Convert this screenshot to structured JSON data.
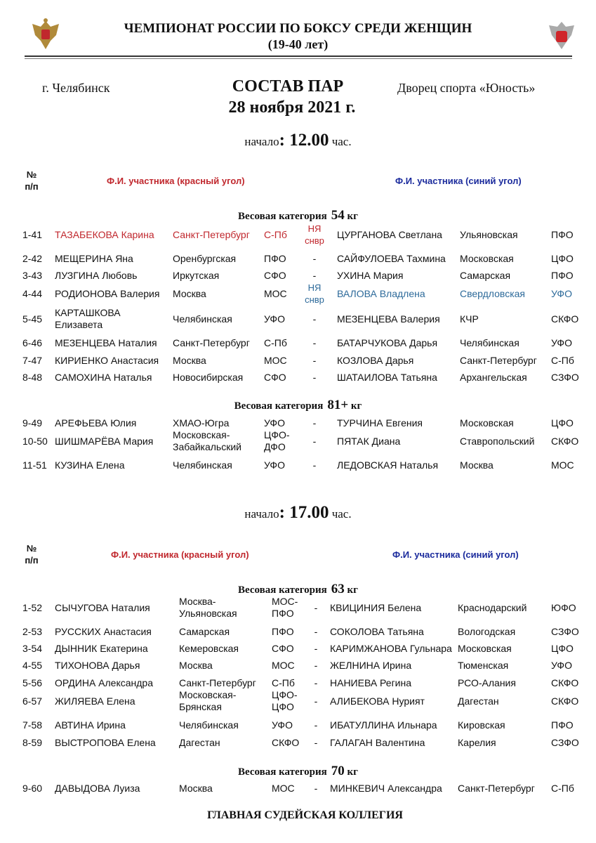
{
  "header": {
    "title": "ЧЕМПИОНАТ РОССИИ ПО БОКСУ СРЕДИ ЖЕНЩИН",
    "subtitle": "(19-40 лет)",
    "city": "г. Челябинск",
    "doc_title": "СОСТАВ ПАР",
    "date": "28 ноября 2021 г.",
    "venue": "Дворец спорта «Юность»"
  },
  "colors": {
    "red": "#c0272d",
    "blue": "#1a2a9c",
    "teal": "#2d6a9a"
  },
  "sessions": [
    {
      "start_label": "начало",
      "start_time": "12.00",
      "start_unit": "час.",
      "num_header": [
        "№",
        "п/п"
      ],
      "red_header": "Ф.И. участника (красный угол)",
      "blue_header": "Ф.И. участника (синий угол)",
      "categories": [
        {
          "label": "Весовая категория",
          "weight": "54",
          "unit": "кг",
          "rows": [
            [
              "1-41",
              "ТАЗАБЕКОВА Карина",
              "Санкт-Петербург",
              "С-Пб",
              "НЯ снвр",
              "ЦУРГАНОВА Светлана",
              "Ульяновская",
              "ПФО",
              "red-win"
            ],
            [
              "2-42",
              "МЕЩЕРИНА Яна",
              "Оренбургская",
              "ПФО",
              "-",
              "САЙФУЛОЕВА Тахмина",
              "Московская",
              "ЦФО",
              ""
            ],
            [
              "3-43",
              "ЛУЗГИНА Любовь",
              "Иркутская",
              "СФО",
              "-",
              "УХИНА Мария",
              "Самарская",
              "ПФО",
              ""
            ],
            [
              "4-44",
              "РОДИОНОВА Валерия",
              "Москва",
              "МОС",
              "НЯ снвр",
              "ВАЛОВА Владлена",
              "Свердловская",
              "УФО",
              "blue-win"
            ],
            [
              "5-45",
              "КАРТАШКОВА Елизавета",
              "Челябинская",
              "УФО",
              "-",
              "МЕЗЕНЦЕВА Валерия",
              "КЧР",
              "СКФО",
              ""
            ],
            [
              "6-46",
              "МЕЗЕНЦЕВА Наталия",
              "Санкт-Петербург",
              "С-Пб",
              "-",
              "БАТАРЧУКОВА Дарья",
              "Челябинская",
              "УФО",
              ""
            ],
            [
              "7-47",
              "КИРИЕНКО Анастасия",
              "Москва",
              "МОС",
              "-",
              "КОЗЛОВА Дарья",
              "Санкт-Петербург",
              "С-Пб",
              ""
            ],
            [
              "8-48",
              "САМОХИНА Наталья",
              "Новосибирская",
              "СФО",
              "-",
              "ШАТАИЛОВА Татьяна",
              "Архангельская",
              "СЗФО",
              ""
            ]
          ]
        },
        {
          "label": "Весовая категория",
          "weight": "81+",
          "unit": "кг",
          "rows": [
            [
              "9-49",
              "АРЕФЬЕВА Юлия",
              "ХМАО-Югра",
              "УФО",
              "-",
              "ТУРЧИНА Евгения",
              "Московская",
              "ЦФО",
              ""
            ],
            [
              "10-50",
              "ШИШМАРЁВА Мария",
              "Московская-Забайкальский",
              "ЦФО-ДФО",
              "-",
              "ПЯТАК Диана",
              "Ставропольский",
              "СКФО",
              ""
            ],
            [
              "11-51",
              "КУЗИНА Елена",
              "Челябинская",
              "УФО",
              "-",
              "ЛЕДОВСКАЯ Наталья",
              "Москва",
              "МОС",
              ""
            ]
          ]
        }
      ]
    },
    {
      "start_label": "начало",
      "start_time": "17.00",
      "start_unit": "час.",
      "num_header": [
        "№",
        "п/п"
      ],
      "red_header": "Ф.И. участника (красный угол)",
      "blue_header": "Ф.И. участника (синий угол)",
      "categories": [
        {
          "label": "Весовая категория",
          "weight": "63",
          "unit": "кг",
          "rows": [
            [
              "1-52",
              "СЫЧУГОВА Наталия",
              "Москва-Ульяновская",
              "МОС-ПФО",
              "-",
              "КВИЦИНИЯ Белена",
              "Краснодарский",
              "ЮФО",
              ""
            ],
            [
              "2-53",
              "РУССКИХ Анастасия",
              "Самарская",
              "ПФО",
              "-",
              "СОКОЛОВА Татьяна",
              "Вологодская",
              "СЗФО",
              ""
            ],
            [
              "3-54",
              "ДЫННИК Екатерина",
              "Кемеровская",
              "СФО",
              "-",
              "КАРИМЖАНОВА Гульнара",
              "Московская",
              "ЦФО",
              ""
            ],
            [
              "4-55",
              "ТИХОНОВА Дарья",
              "Москва",
              "МОС",
              "-",
              "ЖЕЛНИНА Ирина",
              "Тюменская",
              "УФО",
              ""
            ],
            [
              "5-56",
              "ОРДИНА Александра",
              "Санкт-Петербург",
              "С-Пб",
              "-",
              "НАНИЕВА Регина",
              "РСО-Алания",
              "СКФО",
              ""
            ],
            [
              "6-57",
              "ЖИЛЯЕВА Елена",
              "Московская-Брянская",
              "ЦФО-ЦФО",
              "-",
              "АЛИБЕКОВА Нурият",
              "Дагестан",
              "СКФО",
              ""
            ],
            [
              "7-58",
              "АВТИНА Ирина",
              "Челябинская",
              "УФО",
              "-",
              "ИБАТУЛЛИНА Ильнара",
              "Кировская",
              "ПФО",
              ""
            ],
            [
              "8-59",
              "ВЫСТРОПОВА Елена",
              "Дагестан",
              "СКФО",
              "-",
              "ГАЛАГАН Валентина",
              "Карелия",
              "СЗФО",
              ""
            ]
          ]
        },
        {
          "label": "Весовая категория",
          "weight": "70",
          "unit": "кг",
          "rows": [
            [
              "9-60",
              "ДАВЫДОВА Луиза",
              "Москва",
              "МОС",
              "-",
              "МИНКЕВИЧ Александра",
              "Санкт-Петербург",
              "С-Пб",
              ""
            ]
          ]
        }
      ]
    }
  ],
  "footer": "ГЛАВНАЯ СУДЕЙСКАЯ КОЛЛЕГИЯ"
}
